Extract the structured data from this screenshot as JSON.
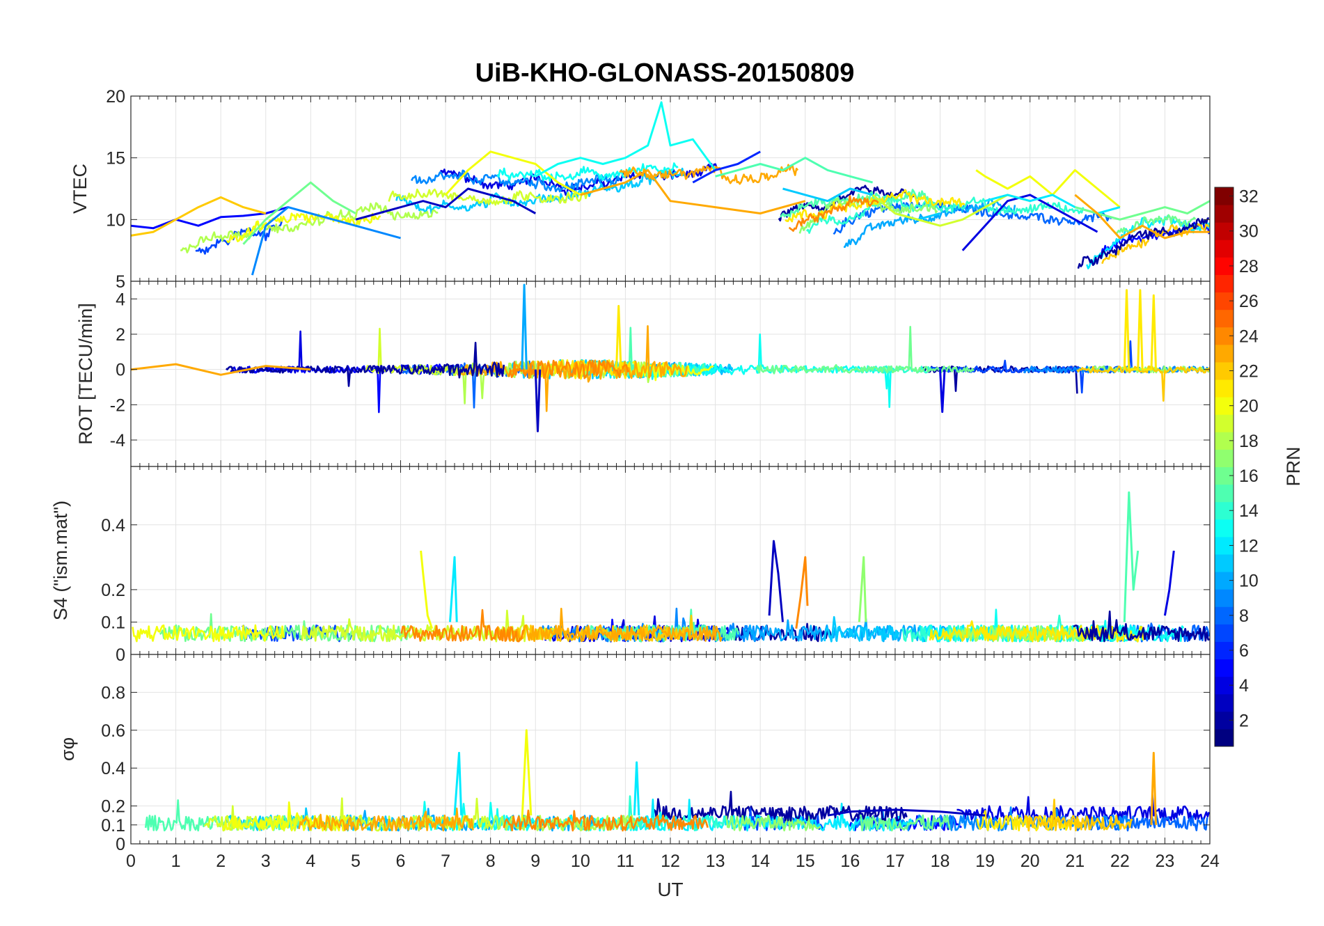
{
  "title": "UiB-KHO-GLONASS-20150809",
  "colorbar": {
    "label": "PRN",
    "ticks": [
      "2",
      "4",
      "6",
      "8",
      "10",
      "12",
      "14",
      "16",
      "18",
      "20",
      "22",
      "24",
      "26",
      "28",
      "30",
      "32"
    ],
    "range": [
      1,
      32
    ],
    "colormap": "jet"
  },
  "chart_data": [
    {
      "type": "line",
      "panel": "vtec",
      "ylabel": "VTEC",
      "xlabel": "",
      "xlim": [
        0,
        24
      ],
      "ylim": [
        5,
        20
      ],
      "yticks": [
        5,
        10,
        15,
        20
      ],
      "ytick_labels": [
        "5",
        "10",
        "15",
        "20"
      ],
      "grid": true,
      "series": [
        {
          "prn": 5,
          "x": [
            0,
            0.5,
            1,
            1.5,
            2,
            2.5,
            3,
            3.5
          ],
          "y": [
            9.5,
            9.3,
            10.0,
            9.5,
            10.2,
            10.3,
            10.5,
            11.0
          ]
        },
        {
          "prn": 22,
          "x": [
            0,
            0.5,
            1,
            1.5,
            2,
            2.5,
            3
          ],
          "y": [
            8.7,
            9.0,
            10.0,
            11.0,
            11.8,
            11.0,
            10.5
          ]
        },
        {
          "prn": 16,
          "x": [
            2.5,
            3,
            3.5,
            4,
            4.5,
            5
          ],
          "y": [
            8.0,
            10.0,
            11.5,
            13.0,
            11.5,
            10.5
          ]
        },
        {
          "prn": 9,
          "x": [
            2.7,
            3,
            3.5,
            4,
            4.5,
            5,
            5.5,
            6
          ],
          "y": [
            5.5,
            9.5,
            11.0,
            10.5,
            10.0,
            9.5,
            9.0,
            8.5
          ]
        },
        {
          "prn": 3,
          "x": [
            5,
            5.5,
            6,
            6.5,
            7,
            7.5,
            8,
            8.5,
            9
          ],
          "y": [
            10.0,
            10.5,
            11.0,
            11.5,
            11.0,
            12.5,
            12.0,
            11.5,
            10.5
          ]
        },
        {
          "prn": 20,
          "x": [
            7,
            7.5,
            8,
            8.5,
            9,
            9.5,
            10
          ],
          "y": [
            12.0,
            14.0,
            15.5,
            15.0,
            14.5,
            13.0,
            12.0
          ]
        },
        {
          "prn": 13,
          "x": [
            9,
            9.5,
            10,
            10.5,
            11,
            11.5,
            11.8,
            12,
            12.5,
            13
          ],
          "y": [
            13.5,
            14.5,
            15.0,
            14.5,
            15.0,
            16.0,
            19.5,
            16.0,
            16.5,
            14.0
          ]
        },
        {
          "prn": 23,
          "x": [
            10,
            10.5,
            11,
            11.5,
            12,
            13,
            14,
            15
          ],
          "y": [
            12.0,
            12.5,
            13.0,
            14.0,
            11.5,
            11.0,
            10.5,
            11.5
          ]
        },
        {
          "prn": 6,
          "x": [
            12.5,
            13,
            13.5,
            14
          ],
          "y": [
            13.0,
            14.0,
            14.5,
            15.5
          ]
        },
        {
          "prn": 15,
          "x": [
            13,
            13.5,
            14,
            14.5,
            15,
            15.5,
            16,
            16.5
          ],
          "y": [
            13.5,
            14.0,
            14.5,
            14.0,
            15.0,
            14.0,
            13.5,
            13.0
          ]
        },
        {
          "prn": 11,
          "x": [
            14.5,
            15,
            15.5,
            16,
            16.5,
            17,
            17.5,
            18
          ],
          "y": [
            12.5,
            12.0,
            11.5,
            12.5,
            12.0,
            10.5,
            10.0,
            10.5
          ]
        },
        {
          "prn": 19,
          "x": [
            16.5,
            17,
            17.5,
            18,
            18.5,
            19,
            19.5,
            20
          ],
          "y": [
            12.0,
            10.5,
            10.0,
            9.5,
            10.0,
            11.0,
            12.0,
            11.5
          ]
        },
        {
          "prn": 20,
          "x": [
            18.8,
            19,
            19.5,
            20,
            20.5,
            21,
            21.5,
            22
          ],
          "y": [
            14.0,
            13.5,
            12.5,
            13.5,
            12.0,
            14.0,
            12.5,
            11.0
          ]
        },
        {
          "prn": 4,
          "x": [
            18.5,
            19,
            19.5,
            20,
            20.5,
            21,
            21.5
          ],
          "y": [
            7.5,
            9.5,
            11.5,
            12.0,
            11.0,
            10.0,
            9.0
          ]
        },
        {
          "prn": 12,
          "x": [
            19,
            19.5,
            20,
            20.5,
            21,
            21.5,
            22
          ],
          "y": [
            11.5,
            12.0,
            11.5,
            12.0,
            11.0,
            10.5,
            11.0
          ]
        },
        {
          "prn": 16,
          "x": [
            21,
            21.5,
            22,
            22.5,
            23,
            23.5,
            24
          ],
          "y": [
            11.0,
            10.5,
            10.0,
            10.5,
            11.0,
            10.5,
            11.5
          ]
        },
        {
          "prn": 23,
          "x": [
            21,
            21.5,
            22,
            22.5,
            23,
            23.5,
            24
          ],
          "y": [
            12.0,
            10.5,
            8.5,
            9.5,
            8.5,
            9.0,
            9.0
          ]
        }
      ]
    },
    {
      "type": "line",
      "panel": "rot",
      "ylabel": "ROT [TECU/min]",
      "xlabel": "",
      "xlim": [
        0,
        24
      ],
      "ylim": [
        -5.5,
        5
      ],
      "yticks": [
        -4,
        -2,
        0,
        2,
        4
      ],
      "ytick_labels": [
        "-4",
        "-2",
        "0",
        "2",
        "4"
      ],
      "grid": true,
      "description_of_spikes": "noisy values around 0 with spikes",
      "series": [
        {
          "prn": 23,
          "x": [
            0,
            1,
            2,
            3,
            4
          ],
          "y": [
            0,
            0.3,
            -0.3,
            0.2,
            0
          ]
        },
        {
          "prn": 10,
          "x": [
            8.7,
            8.75,
            8.8
          ],
          "y": [
            0,
            4.8,
            0
          ]
        },
        {
          "prn": 3,
          "x": [
            9,
            9.05,
            9.1
          ],
          "y": [
            0,
            -3.5,
            0
          ]
        },
        {
          "prn": 21,
          "x": [
            10.8,
            10.85,
            10.9
          ],
          "y": [
            0,
            3.6,
            0
          ]
        },
        {
          "prn": 21,
          "x": [
            22.1,
            22.15,
            22.2,
            22.4,
            22.45,
            22.5,
            22.7,
            22.75,
            22.8
          ],
          "y": [
            0,
            4.5,
            0,
            0,
            4.5,
            0,
            0,
            4.2,
            0
          ]
        },
        {
          "prn": 4,
          "x": [
            18,
            18.05,
            18.1
          ],
          "y": [
            0,
            -2.4,
            0
          ]
        }
      ]
    },
    {
      "type": "line",
      "panel": "s4",
      "ylabel": "S4 (\"ism.mat\")",
      "xlabel": "",
      "xlim": [
        0,
        24
      ],
      "ylim": [
        0,
        0.58
      ],
      "yticks": [
        0,
        0.1,
        0.2,
        0.4
      ],
      "ytick_labels": [
        "0",
        "0.1",
        "0.2",
        "0.4"
      ],
      "grid": true,
      "series": [
        {
          "prn": 20,
          "x": [
            6.45,
            6.5,
            6.6,
            6.7
          ],
          "y": [
            0.32,
            0.25,
            0.12,
            0.08
          ]
        },
        {
          "prn": 12,
          "x": [
            7.1,
            7.2,
            7.25
          ],
          "y": [
            0.1,
            0.3,
            0.1
          ]
        },
        {
          "prn": 3,
          "x": [
            14.2,
            14.3,
            14.4,
            14.5
          ],
          "y": [
            0.12,
            0.35,
            0.25,
            0.1
          ]
        },
        {
          "prn": 24,
          "x": [
            14.8,
            14.9,
            15.0,
            15.05
          ],
          "y": [
            0.08,
            0.18,
            0.3,
            0.15
          ]
        },
        {
          "prn": 17,
          "x": [
            16.2,
            16.3,
            16.35
          ],
          "y": [
            0.1,
            0.3,
            0.1
          ]
        },
        {
          "prn": 15,
          "x": [
            22.1,
            22.2,
            22.3,
            22.4
          ],
          "y": [
            0.1,
            0.5,
            0.2,
            0.32
          ]
        },
        {
          "prn": 4,
          "x": [
            23.0,
            23.1,
            23.2
          ],
          "y": [
            0.12,
            0.2,
            0.32
          ]
        }
      ]
    },
    {
      "type": "line",
      "panel": "sigma_phi",
      "ylabel": "σφ",
      "xlabel": "UT",
      "xlim": [
        0,
        24
      ],
      "ylim": [
        0,
        1
      ],
      "yticks": [
        0,
        0.1,
        0.2,
        0.4,
        0.6,
        0.8
      ],
      "ytick_labels": [
        "0",
        "0.1",
        "0.2",
        "0.4",
        "0.6",
        "0.8"
      ],
      "xticks": [
        0,
        1,
        2,
        3,
        4,
        5,
        6,
        7,
        8,
        9,
        10,
        11,
        12,
        13,
        14,
        15,
        16,
        17,
        18,
        19,
        20,
        21,
        22,
        23,
        24
      ],
      "xtick_labels": [
        "0",
        "1",
        "2",
        "3",
        "4",
        "5",
        "6",
        "7",
        "8",
        "9",
        "10",
        "11",
        "12",
        "13",
        "14",
        "15",
        "16",
        "17",
        "18",
        "19",
        "20",
        "21",
        "22",
        "23",
        "24"
      ],
      "grid": true,
      "series": [
        {
          "prn": 20,
          "x": [
            8.7,
            8.8,
            8.9
          ],
          "y": [
            0.12,
            0.6,
            0.15
          ]
        },
        {
          "prn": 12,
          "x": [
            7.2,
            7.3,
            7.35
          ],
          "y": [
            0.15,
            0.48,
            0.15
          ]
        },
        {
          "prn": 12,
          "x": [
            11.2,
            11.25,
            11.3
          ],
          "y": [
            0.15,
            0.43,
            0.15
          ]
        },
        {
          "prn": 23,
          "x": [
            22.7,
            22.75,
            22.8
          ],
          "y": [
            0.1,
            0.48,
            0.1
          ]
        },
        {
          "prn": 3,
          "x": [
            15.5,
            16,
            17,
            18,
            19
          ],
          "y": [
            0.15,
            0.17,
            0.18,
            0.17,
            0.15
          ]
        }
      ]
    }
  ]
}
